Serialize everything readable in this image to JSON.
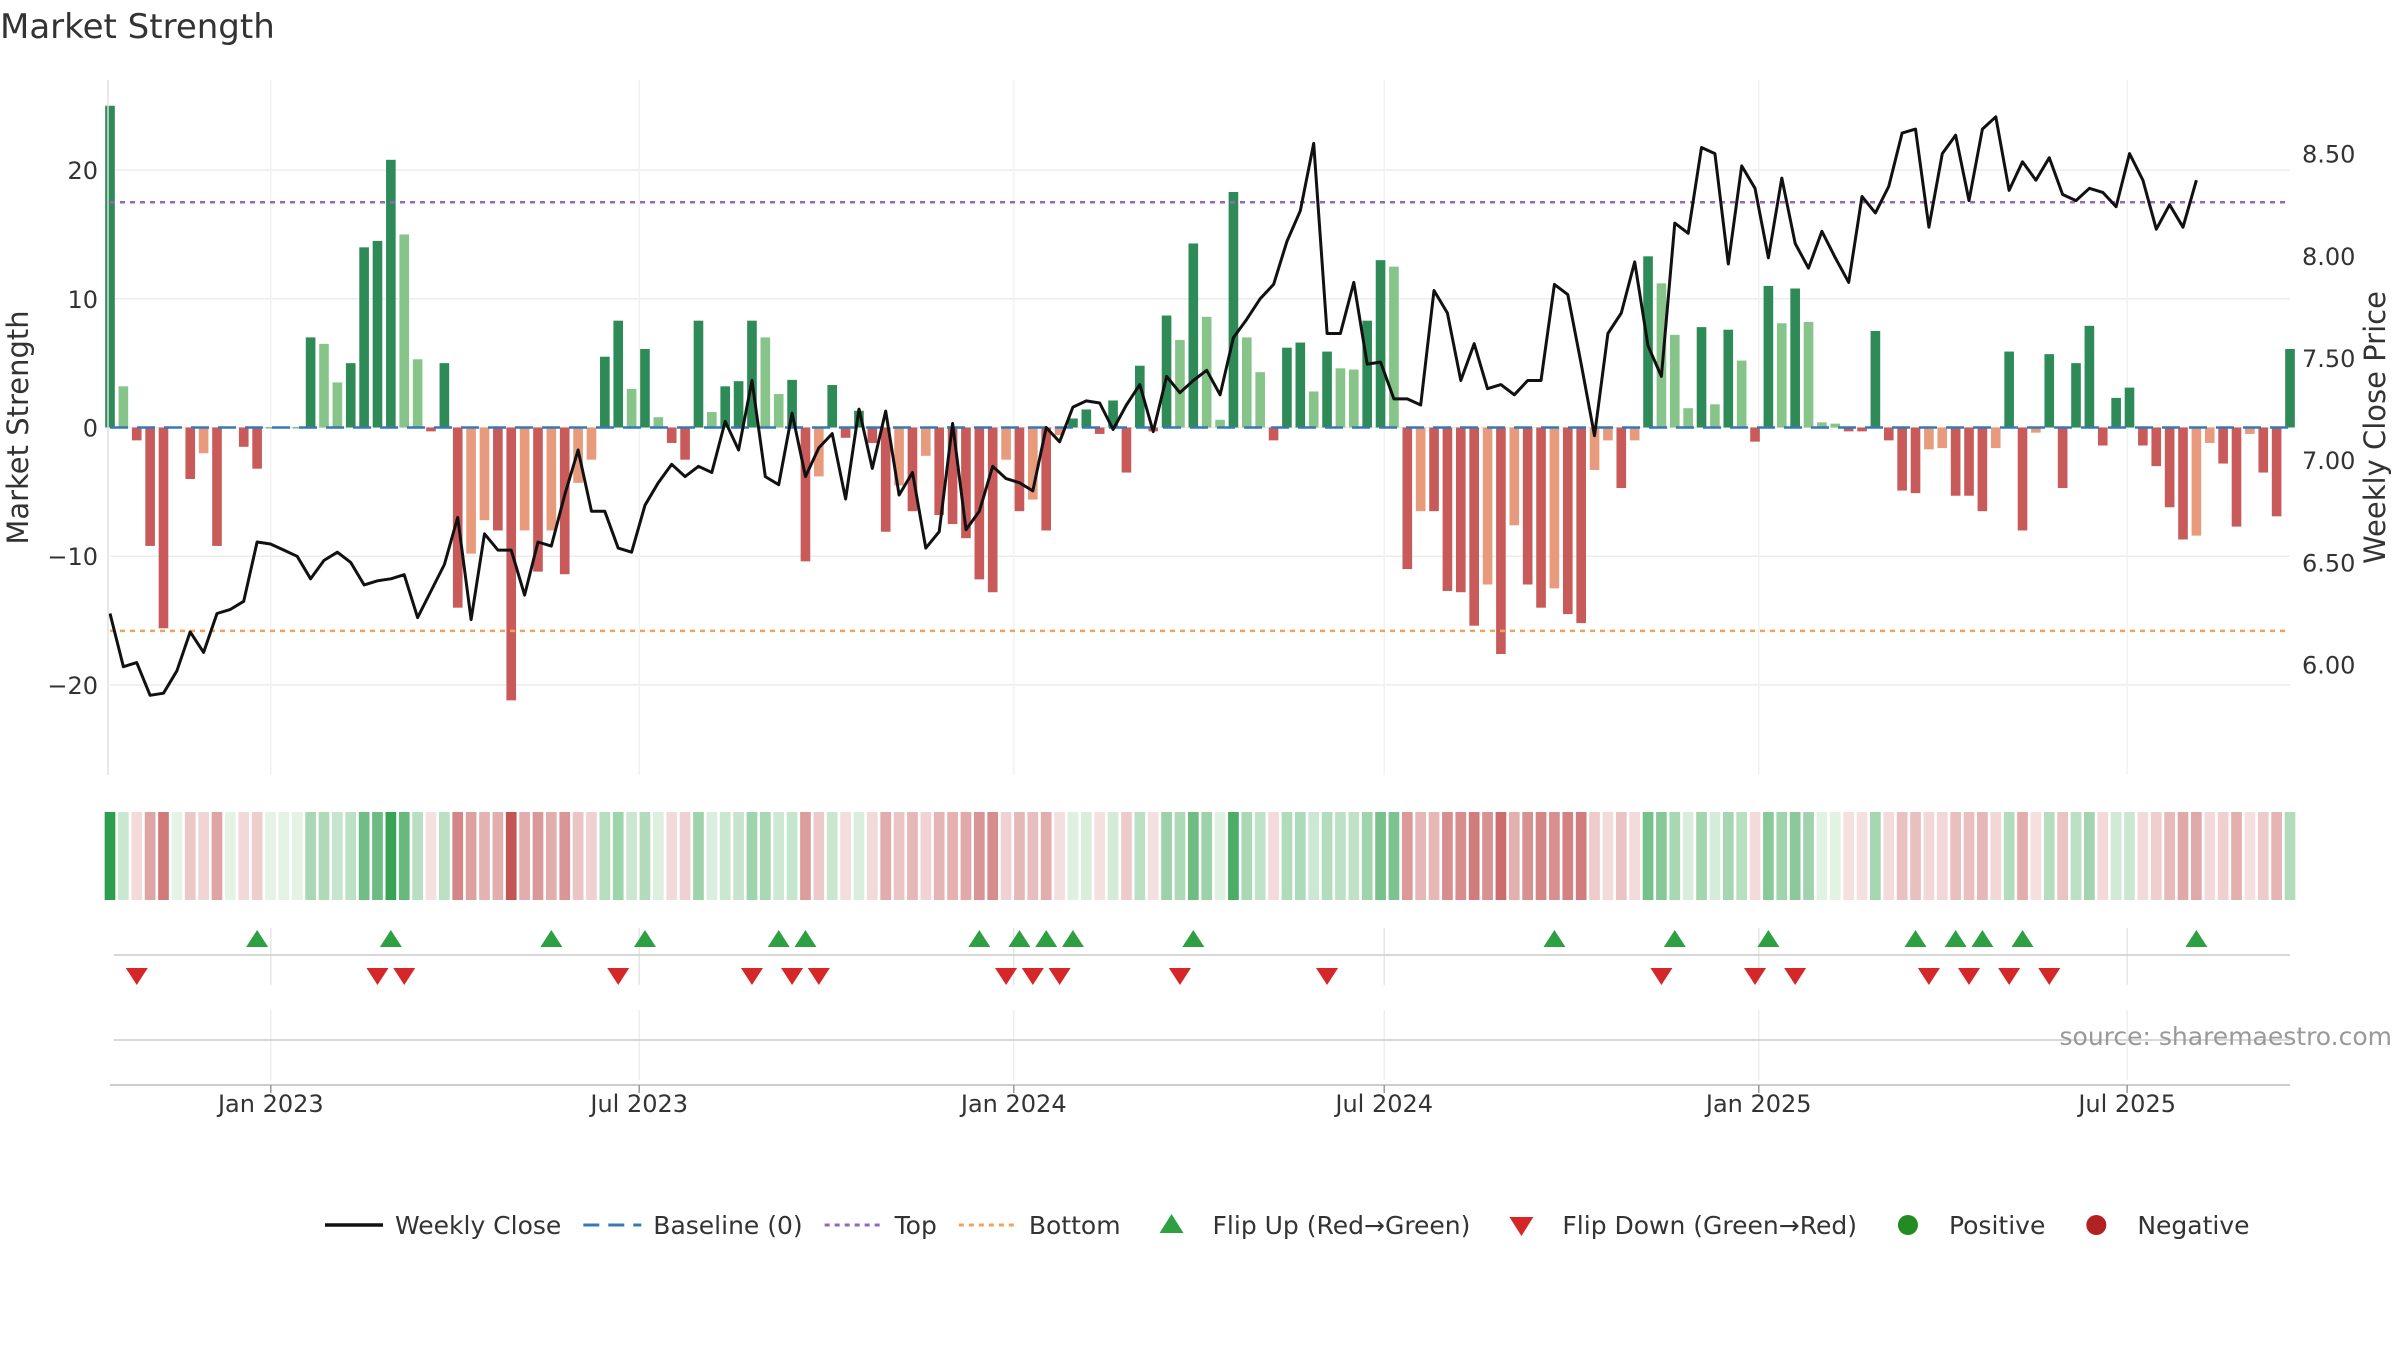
{
  "chart_data": {
    "type": "bar",
    "title": "Market Strength",
    "ylabel_left": "Market Strength",
    "ylabel_right": "Weekly Close Price",
    "y_left_range": [
      -27,
      27
    ],
    "y_left_ticks": [
      -20,
      -10,
      0,
      10,
      20
    ],
    "y_left_tick_labels": [
      "−20",
      "−10",
      "0",
      "10",
      "20"
    ],
    "y_right_range": [
      5.46,
      8.86
    ],
    "y_right_ticks": [
      6.0,
      6.5,
      7.0,
      7.5,
      8.0,
      8.5
    ],
    "y_right_tick_labels": [
      "6.00",
      "6.50",
      "7.00",
      "7.50",
      "8.00",
      "8.50"
    ],
    "top_level": 17.5,
    "bottom_level": -15.8,
    "baseline": 0,
    "x_start": "2022-10-14",
    "x_end": "2025-09-19",
    "x_ticks": [
      {
        "date": "2023-01-01",
        "label": "Jan 2023"
      },
      {
        "date": "2023-07-01",
        "label": "Jul 2023"
      },
      {
        "date": "2024-01-01",
        "label": "Jan 2024"
      },
      {
        "date": "2024-07-01",
        "label": "Jul 2024"
      },
      {
        "date": "2025-01-01",
        "label": "Jan 2025"
      },
      {
        "date": "2025-07-01",
        "label": "Jul 2025"
      }
    ],
    "colors": {
      "pos_strong": "#2e8b57",
      "pos_weak": "#86c48a",
      "neg_strong": "#c85a5a",
      "neg_weak": "#e89a7d",
      "price": "#111111",
      "baseline": "#3778b5",
      "top": "#9467bd",
      "bottom": "#f0a35c",
      "flip_up": "#2ea043",
      "flip_down": "#d62728",
      "positive": "#228b22",
      "negative": "#b22222"
    },
    "series": [
      {
        "name": "Market Strength",
        "values": [
          25,
          3.2,
          -1,
          -9.2,
          -15.6,
          0,
          -4,
          -2,
          -9.2,
          0,
          -1.5,
          -3.2,
          0,
          0,
          0,
          7,
          6.5,
          3.5,
          5,
          14,
          14.5,
          20.8,
          15,
          5.3,
          -0.3,
          5,
          -14,
          -9.8,
          -7.2,
          -8,
          -21.2,
          -8,
          -11.2,
          -8,
          -11.4,
          -4.3,
          -2.5,
          5.5,
          8.3,
          3,
          6.1,
          0.8,
          -1.2,
          -2.5,
          8.3,
          1.2,
          3.2,
          3.6,
          8.3,
          7,
          2.6,
          3.7,
          -10.4,
          -3.8,
          3.3,
          -0.8,
          1.3,
          -1.2,
          -8.1,
          -4.5,
          -6.5,
          -2.2,
          -6.8,
          -7.5,
          -8.6,
          -11.8,
          -12.8,
          -2.5,
          -6.5,
          -5.6,
          -8,
          -0.6,
          0.7,
          1.4,
          -0.5,
          2.1,
          -3.5,
          4.8,
          -0.3,
          8.7,
          6.8,
          14.3,
          8.6,
          0.6,
          18.3,
          7,
          4.3,
          -1,
          6.2,
          6.6,
          2.8,
          5.9,
          4.6,
          4.5,
          8.3,
          13,
          12.5,
          -11,
          -6.5,
          -6.5,
          -12.7,
          -12.8,
          -15.4,
          -12.2,
          -17.6,
          -7.6,
          -12.2,
          -14,
          -12.5,
          -14.5,
          -15.2,
          -3.3,
          -1,
          -4.7,
          -1,
          13.3,
          11.2,
          7.2,
          1.5,
          7.8,
          1.8,
          7.6,
          5.2,
          -1.1,
          11,
          8.1,
          10.8,
          8.2,
          0.4,
          0.3,
          -0.3,
          -0.3,
          7.5,
          -1,
          -4.9,
          -5.1,
          -1.7,
          -1.6,
          -5.3,
          -5.3,
          -6.5,
          -1.6,
          5.9,
          -8,
          -0.4,
          5.7,
          -4.7,
          5,
          7.9,
          -1.4,
          2.3,
          3.1,
          -1.4,
          -3,
          -6.2,
          -8.7,
          -8.4,
          -1.2,
          -2.8,
          -7.7,
          -0.5,
          -3.5,
          -6.9,
          6.1
        ]
      },
      {
        "name": "Weekly Close",
        "values": [
          6.25,
          5.99,
          6.01,
          5.85,
          5.86,
          5.97,
          6.16,
          6.06,
          6.25,
          6.27,
          6.31,
          6.6,
          6.59,
          6.56,
          6.53,
          6.42,
          6.51,
          6.55,
          6.5,
          6.39,
          6.41,
          6.42,
          6.44,
          6.23,
          6.36,
          6.49,
          6.72,
          6.22,
          6.64,
          6.56,
          6.56,
          6.34,
          6.6,
          6.58,
          6.83,
          7.05,
          6.75,
          6.75,
          6.57,
          6.55,
          6.78,
          6.89,
          6.98,
          6.92,
          6.97,
          6.94,
          7.19,
          7.05,
          7.39,
          6.92,
          6.88,
          7.23,
          6.92,
          7.06,
          7.13,
          6.81,
          7.25,
          6.96,
          7.24,
          6.83,
          6.94,
          6.57,
          6.65,
          7.18,
          6.66,
          6.75,
          6.97,
          6.91,
          6.89,
          6.85,
          7.16,
          7.09,
          7.26,
          7.29,
          7.28,
          7.15,
          7.27,
          7.37,
          7.14,
          7.41,
          7.33,
          7.39,
          7.44,
          7.32,
          7.6,
          7.69,
          7.79,
          7.86,
          8.07,
          8.22,
          8.55,
          7.62,
          7.62,
          7.87,
          7.47,
          7.48,
          7.3,
          7.3,
          7.27,
          7.83,
          7.72,
          7.39,
          7.57,
          7.35,
          7.37,
          7.32,
          7.39,
          7.39,
          7.86,
          7.81,
          7.47,
          7.12,
          7.62,
          7.72,
          7.97,
          7.56,
          7.41,
          8.16,
          8.11,
          8.53,
          8.5,
          7.96,
          8.44,
          8.33,
          7.99,
          8.38,
          8.06,
          7.94,
          8.12,
          7.99,
          7.87,
          8.29,
          8.21,
          8.34,
          8.6,
          8.62,
          8.14,
          8.5,
          8.59,
          8.27,
          8.62,
          8.68,
          8.32,
          8.46,
          8.37,
          8.48,
          8.3,
          8.27,
          8.33,
          8.31,
          8.24,
          8.5,
          8.37,
          8.13,
          8.25,
          8.14,
          8.37
        ]
      }
    ],
    "flip_up_indices": [
      11,
      21,
      33,
      40,
      50,
      52,
      65,
      68,
      70,
      72,
      81,
      108,
      117,
      124,
      135,
      138,
      140,
      143,
      156
    ],
    "flip_down_indices": [
      2,
      20,
      22,
      38,
      48,
      51,
      53,
      67,
      69,
      71,
      80,
      91,
      116,
      123,
      126,
      136,
      139,
      142,
      145
    ],
    "source": "source: sharemaestro.com",
    "legend": [
      {
        "key": "price",
        "label": "Weekly Close"
      },
      {
        "key": "baseline",
        "label": "Baseline (0)"
      },
      {
        "key": "top",
        "label": "Top"
      },
      {
        "key": "bottom",
        "label": "Bottom"
      },
      {
        "key": "flip_up",
        "label": "Flip Up (Red→Green)"
      },
      {
        "key": "flip_down",
        "label": "Flip Down (Green→Red)"
      },
      {
        "key": "positive",
        "label": "Positive"
      },
      {
        "key": "negative",
        "label": "Negative"
      }
    ],
    "legend_position": "bottom-center"
  }
}
